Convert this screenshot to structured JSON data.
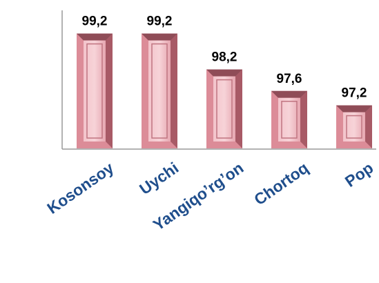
{
  "chart_data": {
    "type": "bar",
    "categories": [
      "Kosonsoy",
      "Uychi",
      "Yangiqo’rg’on",
      "Chortoq",
      "Pop"
    ],
    "values": [
      99.2,
      99.2,
      98.2,
      97.6,
      97.2
    ],
    "value_labels": [
      "99,2",
      "99,2",
      "98,2",
      "97,6",
      "97,2"
    ],
    "color": "#dc8c98",
    "ylim": [
      96,
      100
    ]
  }
}
